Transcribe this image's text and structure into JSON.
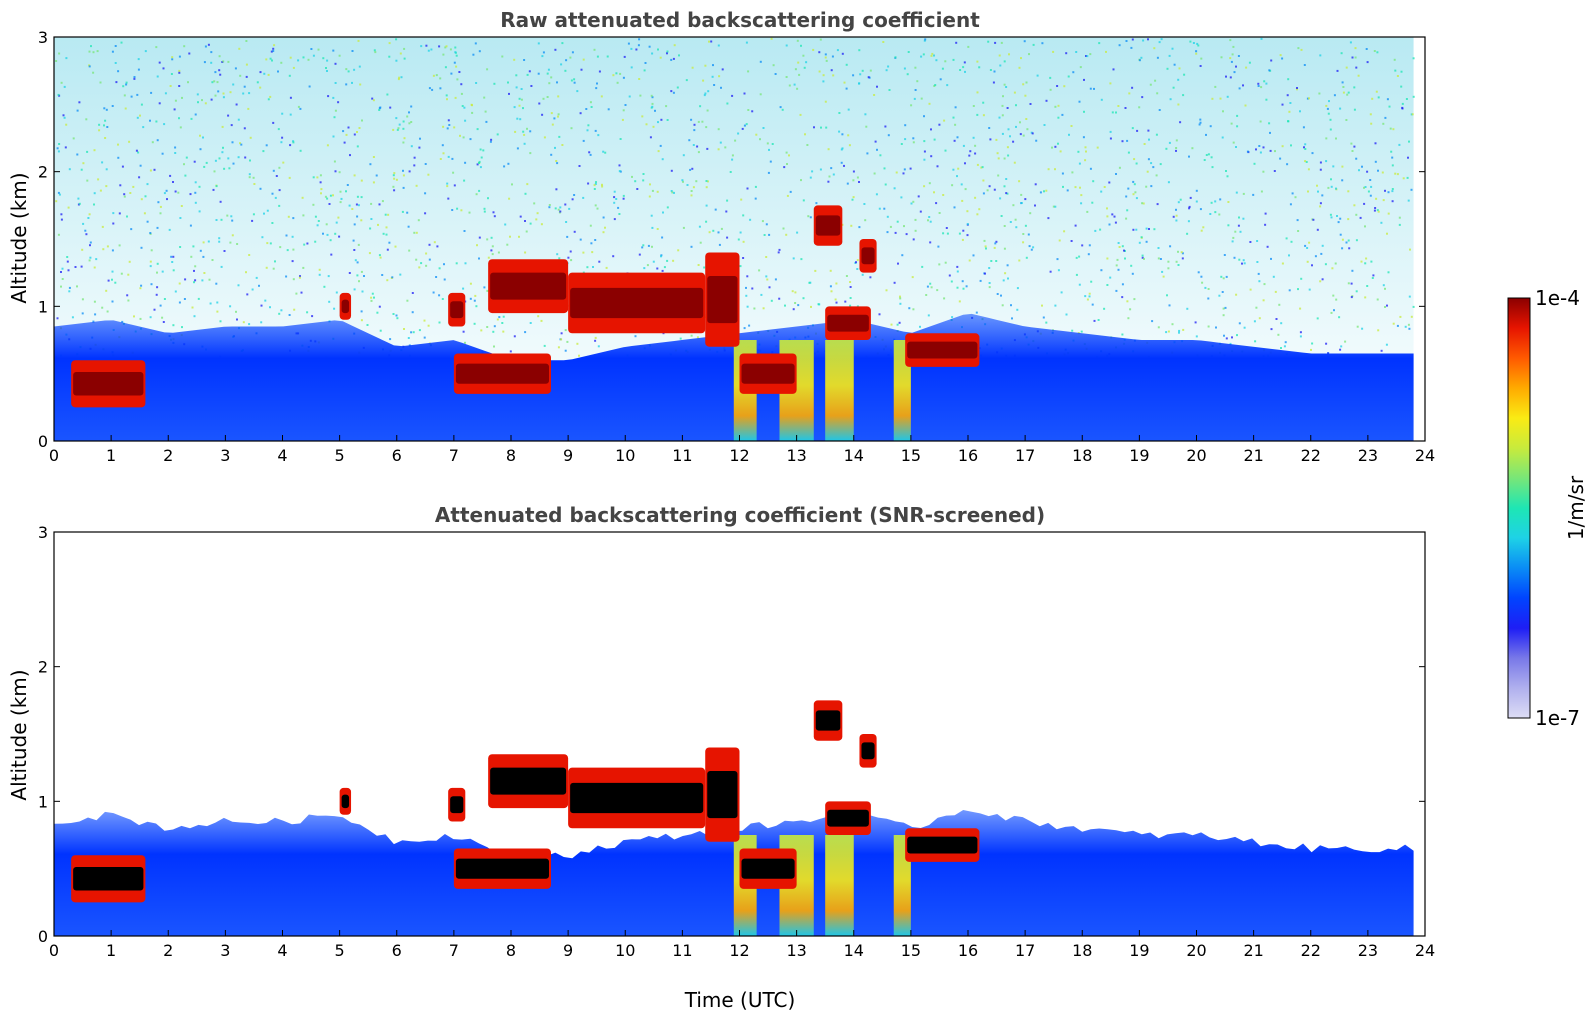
{
  "chart_data": [
    {
      "type": "heatmap",
      "title": "Raw attenuated backscattering coefficient",
      "xlabel": "",
      "ylabel": "Altitude (km)",
      "xlim": [
        0,
        24
      ],
      "ylim": [
        0,
        3
      ],
      "xticks": [
        "0",
        "1",
        "2",
        "3",
        "4",
        "5",
        "6",
        "7",
        "8",
        "9",
        "10",
        "11",
        "12",
        "13",
        "14",
        "15",
        "16",
        "17",
        "18",
        "19",
        "20",
        "21",
        "22",
        "23",
        "24"
      ],
      "yticks": [
        "0",
        "1",
        "2",
        "3"
      ],
      "data_end_hour": 23.8,
      "boundary_layer_top_km": [
        [
          0,
          0.85
        ],
        [
          1,
          0.9
        ],
        [
          2,
          0.8
        ],
        [
          3,
          0.85
        ],
        [
          4,
          0.85
        ],
        [
          5,
          0.9
        ],
        [
          6,
          0.7
        ],
        [
          7,
          0.75
        ],
        [
          8,
          0.6
        ],
        [
          9,
          0.6
        ],
        [
          10,
          0.7
        ],
        [
          11,
          0.75
        ],
        [
          12,
          0.8
        ],
        [
          13,
          0.85
        ],
        [
          14,
          0.9
        ],
        [
          15,
          0.8
        ],
        [
          16,
          0.95
        ],
        [
          17,
          0.85
        ],
        [
          18,
          0.8
        ],
        [
          19,
          0.75
        ],
        [
          20,
          0.75
        ],
        [
          21,
          0.7
        ],
        [
          22,
          0.65
        ],
        [
          23,
          0.65
        ],
        [
          23.8,
          0.65
        ]
      ],
      "cloud_layers": [
        {
          "t0": 0.3,
          "t1": 1.6,
          "base_km": 0.25,
          "top_km": 0.6
        },
        {
          "t0": 5.0,
          "t1": 5.2,
          "base_km": 0.9,
          "top_km": 1.1
        },
        {
          "t0": 6.9,
          "t1": 7.2,
          "base_km": 0.85,
          "top_km": 1.1
        },
        {
          "t0": 7.0,
          "t1": 8.7,
          "base_km": 0.35,
          "top_km": 0.65
        },
        {
          "t0": 7.6,
          "t1": 9.0,
          "base_km": 0.95,
          "top_km": 1.35
        },
        {
          "t0": 9.0,
          "t1": 11.4,
          "base_km": 0.8,
          "top_km": 1.25
        },
        {
          "t0": 11.4,
          "t1": 12.0,
          "base_km": 0.7,
          "top_km": 1.4
        },
        {
          "t0": 12.0,
          "t1": 13.0,
          "base_km": 0.35,
          "top_km": 0.65
        },
        {
          "t0": 13.3,
          "t1": 13.8,
          "base_km": 1.45,
          "top_km": 1.75
        },
        {
          "t0": 13.5,
          "t1": 14.3,
          "base_km": 0.75,
          "top_km": 1.0
        },
        {
          "t0": 14.1,
          "t1": 14.4,
          "base_km": 1.25,
          "top_km": 1.5
        },
        {
          "t0": 14.9,
          "t1": 16.2,
          "base_km": 0.55,
          "top_km": 0.8
        }
      ],
      "precipitation_shafts": [
        {
          "t0": 11.9,
          "t1": 12.3
        },
        {
          "t0": 12.7,
          "t1": 13.3
        },
        {
          "t0": 13.5,
          "t1": 14.0
        },
        {
          "t0": 14.7,
          "t1": 15.0
        }
      ]
    },
    {
      "type": "heatmap",
      "title": "Attenuated backscattering coefficient (SNR-screened)",
      "xlabel": "Time (UTC)",
      "ylabel": "Altitude (km)",
      "xlim": [
        0,
        24
      ],
      "ylim": [
        0,
        3
      ],
      "xticks": [
        "0",
        "1",
        "2",
        "3",
        "4",
        "5",
        "6",
        "7",
        "8",
        "9",
        "10",
        "11",
        "12",
        "13",
        "14",
        "15",
        "16",
        "17",
        "18",
        "19",
        "20",
        "21",
        "22",
        "23",
        "24"
      ],
      "yticks": [
        "0",
        "1",
        "2",
        "3"
      ],
      "data_end_hour": 23.8
    }
  ],
  "colorbar": {
    "label": "1/m/sr",
    "min_label": "1e-7",
    "max_label": "1e-4",
    "scale": "log",
    "colors": [
      "#ddddf5",
      "#b0b0ee",
      "#7878e8",
      "#1e1ef5",
      "#0044ff",
      "#0a8cf5",
      "#1ed2e6",
      "#1ee6b4",
      "#78e678",
      "#c8eb3c",
      "#faeb14",
      "#ffaa00",
      "#ff5a00",
      "#e61400",
      "#8b0000"
    ]
  }
}
